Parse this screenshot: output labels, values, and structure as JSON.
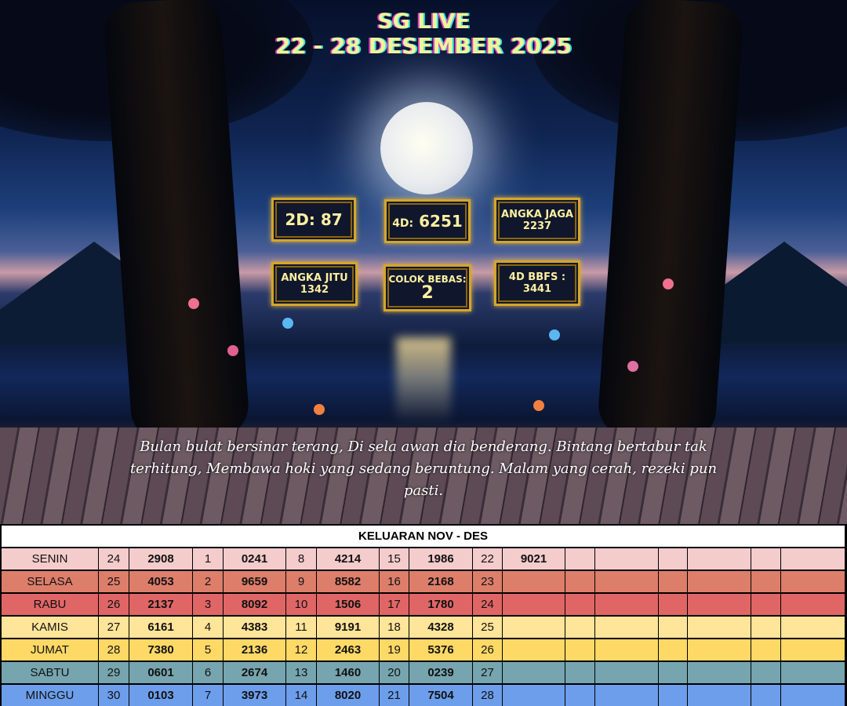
{
  "header": {
    "title": "SG LIVE",
    "subtitle": "22 - 28 DESEMBER 2025"
  },
  "results": {
    "d2": {
      "label": "2D:",
      "value": "87"
    },
    "d4": {
      "label": "4D:",
      "value": "6251"
    },
    "angka_jaga": {
      "label": "ANGKA JAGA",
      "value": "2237"
    },
    "angka_jitu": {
      "label": "ANGKA JITU",
      "value": "1342"
    },
    "colok_bebas": {
      "label": "COLOK BEBAS:",
      "value": "2"
    },
    "bbfs": {
      "label": "4D BBFS :",
      "value": "3441"
    }
  },
  "poem": "Bulan bulat bersinar terang, Di sela awan dia benderang. Bintang bertabur tak terhitung, Membawa hoki yang sedang beruntung. Malam yang cerah, rezeki pun pasti.",
  "table": {
    "title": "KELUARAN NOV - DES",
    "rows": [
      {
        "day": "SENIN",
        "color": "#f4cccc",
        "cells": [
          "24",
          "2908",
          "1",
          "0241",
          "8",
          "4214",
          "15",
          "1986",
          "22",
          "9021",
          "",
          "",
          "",
          "",
          "",
          "",
          ""
        ]
      },
      {
        "day": "SELASA",
        "color": "#dd7e6b",
        "cells": [
          "25",
          "4053",
          "2",
          "9659",
          "9",
          "8582",
          "16",
          "2168",
          "23",
          "",
          "",
          "",
          "",
          "",
          "",
          "",
          ""
        ]
      },
      {
        "day": "RABU",
        "color": "#e06666",
        "cells": [
          "26",
          "2137",
          "3",
          "8092",
          "10",
          "1506",
          "17",
          "1780",
          "24",
          "",
          "",
          "",
          "",
          "",
          "",
          "",
          ""
        ]
      },
      {
        "day": "KAMIS",
        "color": "#ffe599",
        "cells": [
          "27",
          "6161",
          "4",
          "4383",
          "11",
          "9191",
          "18",
          "4328",
          "25",
          "",
          "",
          "",
          "",
          "",
          "",
          "",
          ""
        ]
      },
      {
        "day": "JUMAT",
        "color": "#ffd966",
        "cells": [
          "28",
          "7380",
          "5",
          "2136",
          "12",
          "2463",
          "19",
          "5376",
          "26",
          "",
          "",
          "",
          "",
          "",
          "",
          "",
          ""
        ]
      },
      {
        "day": "SABTU",
        "color": "#76a5af",
        "cells": [
          "29",
          "0601",
          "6",
          "2674",
          "13",
          "1460",
          "20",
          "0239",
          "27",
          "",
          "",
          "",
          "",
          "",
          "",
          "",
          ""
        ]
      },
      {
        "day": "MINGGU",
        "color": "#6d9eeb",
        "cells": [
          "30",
          "0103",
          "7",
          "3973",
          "14",
          "8020",
          "21",
          "7504",
          "28",
          "",
          "",
          "",
          "",
          "",
          "",
          "",
          ""
        ]
      }
    ]
  }
}
